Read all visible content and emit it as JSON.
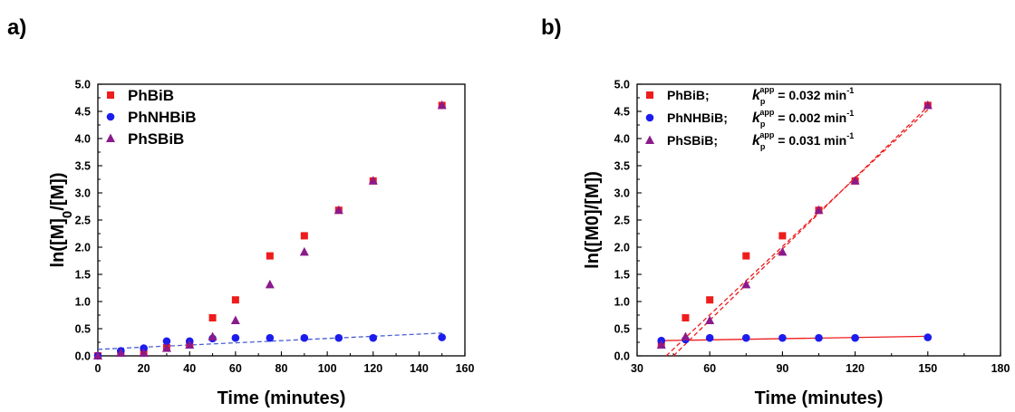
{
  "figure": {
    "panels": [
      "a)",
      "b)"
    ]
  },
  "colors": {
    "PhBiB": "#ee1c1c",
    "PhNHBiB": "#1c1cee",
    "PhSBiB": "#8b1a8b",
    "fit_a": "#4a5fd0",
    "fit_b_dashed": "#ee1c1c",
    "fit_b_solid": "#ee1c1c"
  },
  "chart_data": [
    {
      "type": "scatter",
      "panel": "a)",
      "xlabel": "Time (minutes)",
      "ylabel": "ln([M]0/[M])",
      "ylabel_parts": {
        "pre": "ln([M]",
        "sub": "0",
        "post": "/[M])"
      },
      "xlim": [
        0,
        160
      ],
      "ylim": [
        0.0,
        5.0
      ],
      "xticks": [
        "0",
        "20",
        "40",
        "60",
        "80",
        "100",
        "120",
        "140",
        "160"
      ],
      "yticks": [
        "0.0",
        "0.5",
        "1.0",
        "1.5",
        "2.0",
        "2.5",
        "3.0",
        "3.5",
        "4.0",
        "4.5",
        "5.0"
      ],
      "legend_position": "top-left",
      "series": [
        {
          "name": "PhBiB",
          "marker": "square",
          "x": [
            0,
            10,
            20,
            30,
            40,
            50,
            60,
            75,
            90,
            105,
            120,
            150
          ],
          "y": [
            0.0,
            0.05,
            0.08,
            0.15,
            0.22,
            0.7,
            1.03,
            1.84,
            2.21,
            2.68,
            3.22,
            4.61
          ]
        },
        {
          "name": "PhNHBiB",
          "marker": "circle",
          "x": [
            0,
            10,
            20,
            30,
            40,
            50,
            60,
            75,
            90,
            105,
            120,
            150
          ],
          "y": [
            0.0,
            0.09,
            0.14,
            0.27,
            0.27,
            0.32,
            0.33,
            0.33,
            0.33,
            0.33,
            0.33,
            0.34
          ]
        },
        {
          "name": "PhSBiB",
          "marker": "triangle",
          "x": [
            0,
            10,
            20,
            30,
            40,
            50,
            60,
            75,
            90,
            105,
            120,
            150
          ],
          "y": [
            0.0,
            0.05,
            0.05,
            0.14,
            0.2,
            0.35,
            0.65,
            1.31,
            1.91,
            2.68,
            3.22,
            4.61
          ]
        }
      ],
      "fit_lines": [
        {
          "style": "dashed",
          "color_key": "fit_a",
          "x": [
            0,
            150
          ],
          "y": [
            0.12,
            0.42
          ]
        }
      ]
    },
    {
      "type": "scatter",
      "panel": "b)",
      "xlabel": "Time (minutes)",
      "ylabel": "ln([M0]/[M])",
      "xlim": [
        30,
        180
      ],
      "ylim": [
        0.0,
        5.0
      ],
      "xticks": [
        "30",
        "60",
        "90",
        "120",
        "150",
        "180"
      ],
      "yticks": [
        "0.0",
        "0.5",
        "1.0",
        "1.5",
        "2.0",
        "2.5",
        "3.0",
        "3.5",
        "4.0",
        "4.5",
        "5.0"
      ],
      "legend_position": "top-left",
      "legend": [
        {
          "name": "PhBiB;",
          "k_sym": "k",
          "k_sub": "p",
          "k_sup": "app",
          "value": " = 0.032 min",
          "unit_sup": "-1"
        },
        {
          "name": "PhNHBiB;",
          "k_sym": "k",
          "k_sub": "p",
          "k_sup": "app",
          "value": " = 0.002 min",
          "unit_sup": "-1"
        },
        {
          "name": "PhSBiB;",
          "k_sym": "k",
          "k_sub": "p",
          "k_sup": "app",
          "value": " = 0.031 min",
          "unit_sup": "-1"
        }
      ],
      "series": [
        {
          "name": "PhBiB",
          "marker": "square",
          "x": [
            40,
            50,
            60,
            75,
            90,
            105,
            120,
            150
          ],
          "y": [
            0.22,
            0.7,
            1.03,
            1.84,
            2.21,
            2.68,
            3.22,
            4.61
          ]
        },
        {
          "name": "PhNHBiB",
          "marker": "circle",
          "x": [
            40,
            50,
            60,
            75,
            90,
            105,
            120,
            150
          ],
          "y": [
            0.28,
            0.3,
            0.33,
            0.33,
            0.33,
            0.33,
            0.33,
            0.34
          ]
        },
        {
          "name": "PhSBiB",
          "marker": "triangle",
          "x": [
            40,
            50,
            60,
            75,
            90,
            105,
            120,
            150
          ],
          "y": [
            0.2,
            0.35,
            0.65,
            1.31,
            1.91,
            2.68,
            3.22,
            4.61
          ]
        }
      ],
      "fit_lines": [
        {
          "style": "dashed",
          "color_key": "fit_b_dashed",
          "x": [
            42,
            150
          ],
          "y": [
            0.0,
            4.53
          ]
        },
        {
          "style": "dashed",
          "color_key": "fit_b_dashed",
          "x": [
            45,
            150
          ],
          "y": [
            0.0,
            4.59
          ]
        },
        {
          "style": "solid",
          "color_key": "fit_b_solid",
          "x": [
            40,
            150
          ],
          "y": [
            0.28,
            0.36
          ]
        }
      ]
    }
  ]
}
